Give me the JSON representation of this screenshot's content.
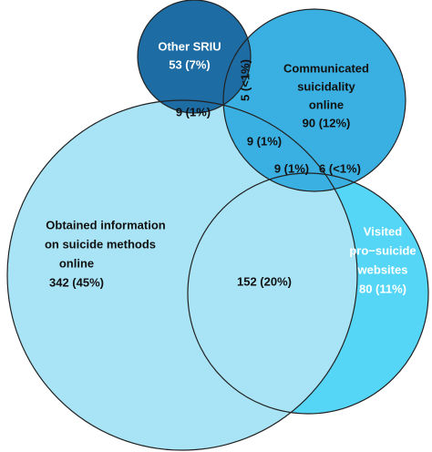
{
  "sets": [
    {
      "label": [
        "Other SRIU"
      ],
      "count": "53 (7%)"
    },
    {
      "label": [
        "Communicated",
        "suicidality",
        "online"
      ],
      "count": "90 (12%)"
    },
    {
      "label": [
        "Obtained information",
        "on suicide methods",
        "online"
      ],
      "count": "342 (45%)"
    },
    {
      "label": [
        "Visited",
        "pro−suicide",
        "websites"
      ],
      "count": "80 (11%)"
    }
  ],
  "overlaps": {
    "other_obtained": "9 (1%)",
    "other_communicated": "5 (<1%)",
    "communicated_obtained": "9 (1%)",
    "communicated_obtained_visited": "9 (1%)",
    "communicated_visited": "6 (<1%)",
    "obtained_visited": "152 (20%)"
  }
}
